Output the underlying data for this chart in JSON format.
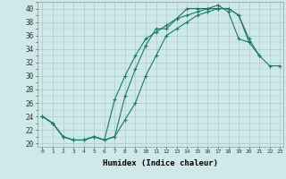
{
  "xlabel": "Humidex (Indice chaleur)",
  "bg_color": "#cfe8e8",
  "grid_color": "#a8cccc",
  "line_color": "#1a7a6a",
  "xlim": [
    -0.5,
    23.3
  ],
  "ylim": [
    19.5,
    41
  ],
  "yticks": [
    20,
    22,
    24,
    26,
    28,
    30,
    32,
    34,
    36,
    38,
    40
  ],
  "xticks": [
    0,
    1,
    2,
    3,
    4,
    5,
    6,
    7,
    8,
    9,
    10,
    11,
    12,
    13,
    14,
    15,
    16,
    17,
    18,
    19,
    20,
    21,
    22,
    23
  ],
  "line1_x": [
    0,
    1,
    2,
    3,
    4,
    5,
    6,
    7,
    8,
    9,
    10,
    11,
    12,
    13,
    14,
    15,
    16,
    17,
    18,
    19,
    20,
    21,
    22,
    23
  ],
  "line1_y": [
    24,
    23,
    21,
    20.5,
    20.5,
    21,
    20.5,
    21,
    27,
    31,
    34.5,
    37,
    37,
    38.5,
    40,
    40,
    40,
    40,
    40,
    39,
    35.5,
    33,
    null,
    null
  ],
  "line2_x": [
    0,
    1,
    2,
    3,
    4,
    5,
    6,
    7,
    8,
    9,
    10,
    11,
    12,
    13,
    14,
    15,
    16,
    17,
    18,
    19,
    20,
    21,
    22,
    23
  ],
  "line2_y": [
    24,
    23,
    21,
    20.5,
    20.5,
    21,
    20.5,
    21,
    23.5,
    26,
    30,
    33,
    36,
    37,
    38,
    39,
    39.5,
    40,
    40,
    39,
    35,
    null,
    null,
    null
  ],
  "line3_x": [
    0,
    1,
    2,
    3,
    4,
    5,
    6,
    7,
    8,
    9,
    10,
    11,
    12,
    13,
    14,
    15,
    16,
    17,
    18,
    19,
    20,
    21,
    22,
    23
  ],
  "line3_y": [
    24,
    23,
    21,
    20.5,
    20.5,
    21,
    20.5,
    26.5,
    30,
    33,
    35.5,
    36.5,
    37.5,
    38.5,
    39,
    39.5,
    40,
    40.5,
    39.5,
    35.5,
    35,
    33,
    31.5,
    31.5
  ]
}
